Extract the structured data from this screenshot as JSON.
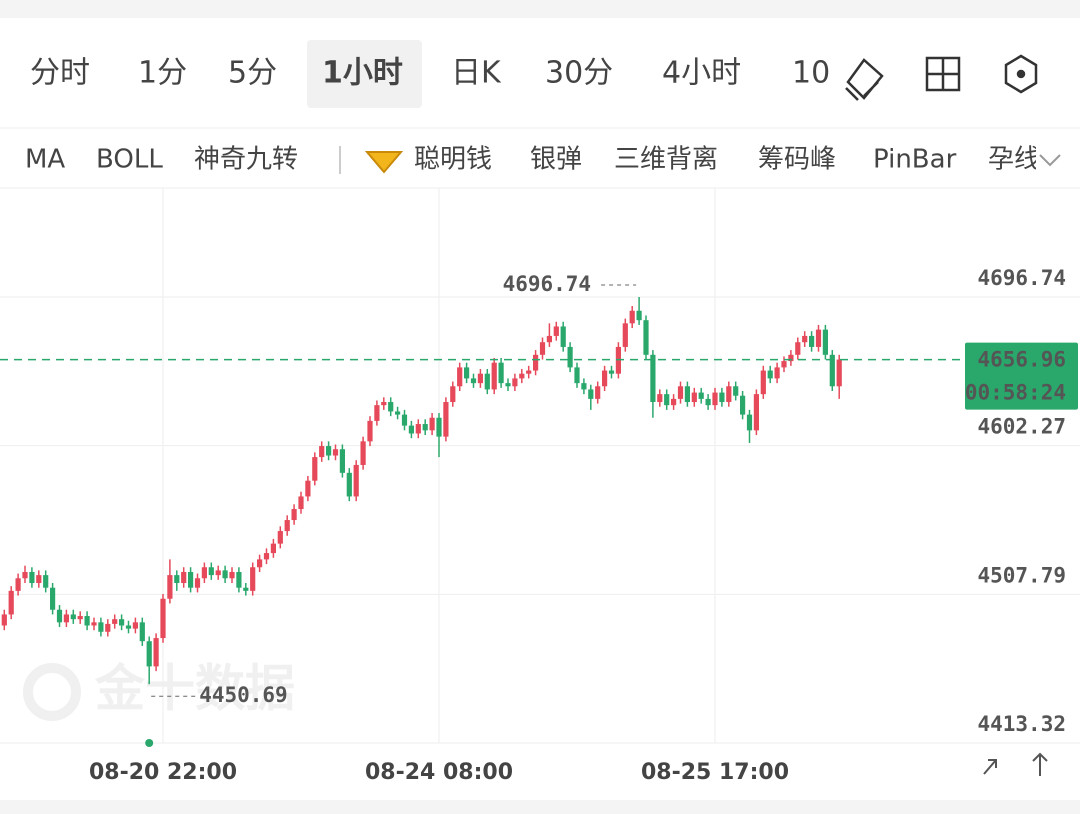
{
  "tabs": {
    "items": [
      "分时",
      "1分",
      "5分",
      "1小时",
      "日K",
      "30分",
      "4小时",
      "10"
    ],
    "active": 3
  },
  "indicators": [
    "MA",
    "BOLL",
    "神奇九转",
    "聪明钱",
    "银弹",
    "三维背离",
    "筹码峰",
    "PinBar",
    "孕线"
  ],
  "watermark": "金十数据",
  "chart_data": {
    "type": "candlestick",
    "categories": [
      null,
      null,
      null,
      null,
      null,
      null,
      null,
      null,
      null,
      null,
      null,
      null,
      null,
      null,
      null,
      null,
      null,
      null,
      null,
      null,
      null,
      null,
      null,
      "08-20 22:00",
      null,
      null,
      null,
      null,
      null,
      null,
      null,
      null,
      null,
      null,
      null,
      null,
      null,
      null,
      null,
      null,
      null,
      null,
      null,
      null,
      null,
      null,
      null,
      null,
      null,
      null,
      null,
      null,
      null,
      null,
      null,
      null,
      null,
      null,
      null,
      null,
      null,
      null,
      null,
      "08-24 08:00",
      null,
      null,
      null,
      null,
      null,
      null,
      null,
      null,
      null,
      null,
      null,
      null,
      null,
      null,
      null,
      null,
      null,
      null,
      null,
      null,
      null,
      null,
      null,
      null,
      null,
      null,
      null,
      null,
      null,
      null,
      null,
      null,
      null,
      null,
      null,
      null,
      null,
      null,
      null,
      "08-25 17:00",
      null,
      null,
      null,
      null,
      null,
      null,
      null,
      null,
      null,
      null,
      null,
      null,
      null,
      null,
      null,
      null,
      null,
      null
    ],
    "open": [
      4488,
      4495,
      4510,
      4518,
      4522,
      4515,
      4520,
      4512,
      4498,
      4490,
      4495,
      4492,
      4494,
      4488,
      4490,
      4484,
      4489,
      4492,
      4488,
      4486,
      4490,
      4478,
      4462,
      4480,
      4505,
      4520,
      4515,
      4522,
      4512,
      4518,
      4525,
      4520,
      4523,
      4518,
      4522,
      4512,
      4510,
      4525,
      4530,
      4534,
      4540,
      4548,
      4555,
      4562,
      4570,
      4580,
      4595,
      4602,
      4596,
      4600,
      4585,
      4570,
      4590,
      4605,
      4618,
      4628,
      4630,
      4624,
      4622,
      4615,
      4610,
      4616,
      4612,
      4620,
      4608,
      4630,
      4640,
      4652,
      4645,
      4642,
      4648,
      4638,
      4655,
      4642,
      4640,
      4645,
      4648,
      4650,
      4660,
      4668,
      4672,
      4678,
      4665,
      4652,
      4642,
      4638,
      4632,
      4640,
      4650,
      4648,
      4665,
      4680,
      4688,
      4682,
      4660,
      4630,
      4635,
      4628,
      4632,
      4640,
      4630,
      4636,
      4632,
      4628,
      4636,
      4630,
      4640,
      4634,
      4622,
      4612,
      4635,
      4650,
      4645,
      4652,
      4656,
      4660,
      4668,
      4672,
      4665,
      4676,
      4660,
      4640
    ],
    "high": [
      4498,
      4513,
      4521,
      4526,
      4525,
      4523,
      4523,
      4515,
      4501,
      4498,
      4498,
      4497,
      4497,
      4493,
      4493,
      4492,
      4495,
      4495,
      4491,
      4493,
      4493,
      4481,
      4483,
      4508,
      4530,
      4523,
      4525,
      4525,
      4521,
      4528,
      4528,
      4526,
      4526,
      4525,
      4525,
      4515,
      4528,
      4533,
      4537,
      4543,
      4551,
      4558,
      4565,
      4573,
      4583,
      4598,
      4605,
      4605,
      4603,
      4603,
      4588,
      4593,
      4608,
      4621,
      4631,
      4633,
      4633,
      4627,
      4625,
      4618,
      4619,
      4619,
      4623,
      4623,
      4633,
      4643,
      4655,
      4655,
      4648,
      4651,
      4651,
      4658,
      4658,
      4645,
      4648,
      4651,
      4653,
      4663,
      4671,
      4680,
      4681,
      4681,
      4668,
      4655,
      4645,
      4641,
      4643,
      4653,
      4653,
      4668,
      4683,
      4691,
      4696.74,
      4685,
      4663,
      4638,
      4638,
      4635,
      4643,
      4643,
      4639,
      4639,
      4635,
      4639,
      4639,
      4643,
      4643,
      4637,
      4625,
      4638,
      4653,
      4653,
      4655,
      4659,
      4663,
      4671,
      4675,
      4675,
      4679,
      4679,
      4663,
      4660
    ],
    "low": [
      4485,
      4492,
      4507,
      4515,
      4512,
      4512,
      4509,
      4495,
      4487,
      4487,
      4489,
      4489,
      4485,
      4485,
      4481,
      4481,
      4486,
      4485,
      4483,
      4483,
      4475,
      4450.69,
      4459,
      4477,
      4502,
      4510,
      4512,
      4509,
      4509,
      4515,
      4517,
      4517,
      4515,
      4515,
      4509,
      4507,
      4507,
      4522,
      4527,
      4531,
      4537,
      4545,
      4552,
      4559,
      4567,
      4577,
      4592,
      4593,
      4593,
      4582,
      4567,
      4567,
      4587,
      4602,
      4615,
      4625,
      4621,
      4619,
      4612,
      4607,
      4607,
      4609,
      4609,
      4595,
      4605,
      4627,
      4637,
      4642,
      4639,
      4639,
      4635,
      4635,
      4639,
      4637,
      4637,
      4642,
      4645,
      4647,
      4657,
      4665,
      4669,
      4662,
      4649,
      4639,
      4635,
      4625,
      4629,
      4637,
      4645,
      4645,
      4662,
      4677,
      4679,
      4657,
      4620,
      4627,
      4625,
      4625,
      4629,
      4627,
      4627,
      4629,
      4625,
      4625,
      4627,
      4627,
      4631,
      4619,
      4604,
      4609,
      4632,
      4642,
      4642,
      4649,
      4653,
      4657,
      4665,
      4662,
      4662,
      4657,
      4637,
      4632
    ],
    "close": [
      4495,
      4510,
      4518,
      4522,
      4515,
      4520,
      4512,
      4498,
      4490,
      4495,
      4492,
      4494,
      4488,
      4490,
      4484,
      4489,
      4492,
      4488,
      4486,
      4490,
      4478,
      4462,
      4480,
      4505,
      4520,
      4515,
      4522,
      4512,
      4518,
      4525,
      4520,
      4523,
      4518,
      4522,
      4512,
      4510,
      4525,
      4530,
      4534,
      4540,
      4548,
      4555,
      4562,
      4570,
      4580,
      4595,
      4602,
      4596,
      4600,
      4585,
      4570,
      4590,
      4605,
      4618,
      4628,
      4630,
      4624,
      4622,
      4615,
      4610,
      4616,
      4612,
      4620,
      4608,
      4630,
      4640,
      4652,
      4645,
      4642,
      4648,
      4638,
      4655,
      4642,
      4640,
      4645,
      4648,
      4650,
      4660,
      4668,
      4672,
      4678,
      4665,
      4652,
      4642,
      4638,
      4632,
      4640,
      4650,
      4648,
      4665,
      4680,
      4688,
      4682,
      4660,
      4630,
      4635,
      4628,
      4632,
      4640,
      4630,
      4636,
      4632,
      4628,
      4636,
      4630,
      4640,
      4634,
      4622,
      4612,
      4635,
      4650,
      4645,
      4652,
      4656,
      4660,
      4668,
      4672,
      4665,
      4676,
      4660,
      4640,
      4656.96
    ],
    "up_color": "#e5495a",
    "down_color": "#2aa86c",
    "max_index": 92,
    "min_index": 21,
    "countdown": "00:58:24",
    "ylim": [
      4413.32,
      4766
    ],
    "yticks": [
      4413.32,
      4507.79,
      4602.27,
      4696.74
    ],
    "grid": true
  }
}
